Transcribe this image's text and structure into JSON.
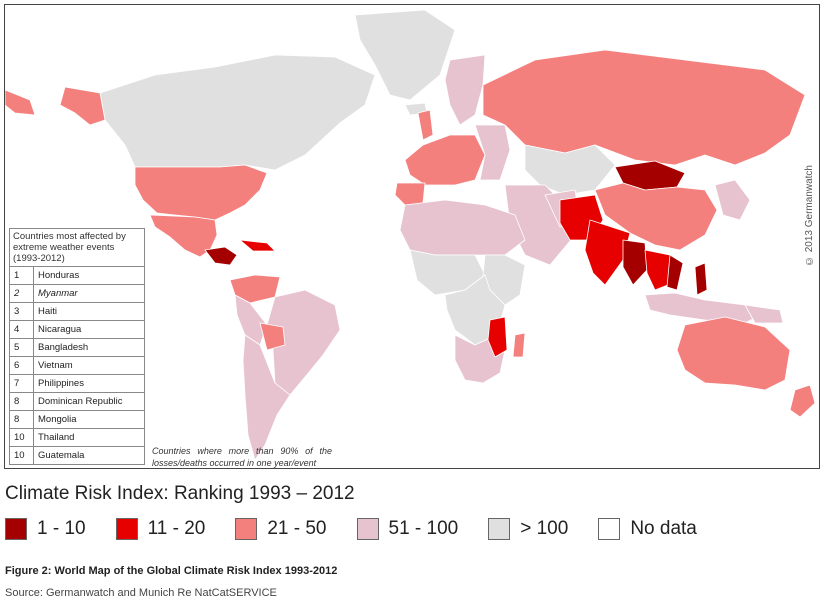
{
  "colors": {
    "rank_1_10": "#a40000",
    "rank_11_20": "#e60000",
    "rank_21_50": "#f4807e",
    "rank_51_100": "#e7c3cf",
    "rank_gt_100": "#e0e0e0",
    "no_data": "#ffffff",
    "border": "#ffffff",
    "ocean": "#ffffff"
  },
  "copyright": "© 2013 Germanwatch",
  "table": {
    "header": "Countries most affected by extreme weather events (1993-2012)",
    "rows": [
      {
        "rank": "1",
        "country": "Honduras",
        "italic": false
      },
      {
        "rank": "2",
        "country": "Myanmar",
        "italic": true
      },
      {
        "rank": "3",
        "country": "Haiti",
        "italic": false
      },
      {
        "rank": "4",
        "country": "Nicaragua",
        "italic": false
      },
      {
        "rank": "5",
        "country": "Bangladesh",
        "italic": false
      },
      {
        "rank": "6",
        "country": "Vietnam",
        "italic": false
      },
      {
        "rank": "7",
        "country": "Philippines",
        "italic": false
      },
      {
        "rank": "8",
        "country": "Dominican Republic",
        "italic": false
      },
      {
        "rank": "8",
        "country": "Mongolia",
        "italic": false
      },
      {
        "rank": "10",
        "country": "Thailand",
        "italic": false
      },
      {
        "rank": "10",
        "country": "Guatemala",
        "italic": false
      }
    ]
  },
  "footnote": "Countries where more than 90% of the losses/deaths occurred in one year/event",
  "legend": {
    "title": "Climate Risk Index: Ranking 1993 – 2012",
    "items": [
      {
        "label": "1 - 10",
        "color_key": "rank_1_10"
      },
      {
        "label": "11 - 20",
        "color_key": "rank_11_20"
      },
      {
        "label": "21 - 50",
        "color_key": "rank_21_50"
      },
      {
        "label": "51 - 100",
        "color_key": "rank_51_100"
      },
      {
        "label": "> 100",
        "color_key": "rank_gt_100"
      },
      {
        "label": "No data",
        "color_key": "no_data"
      }
    ]
  },
  "caption": "Figure 2: World Map of the Global Climate Risk Index 1993-2012",
  "source": "Source: Germanwatch and Munich Re NatCatSERVICE"
}
